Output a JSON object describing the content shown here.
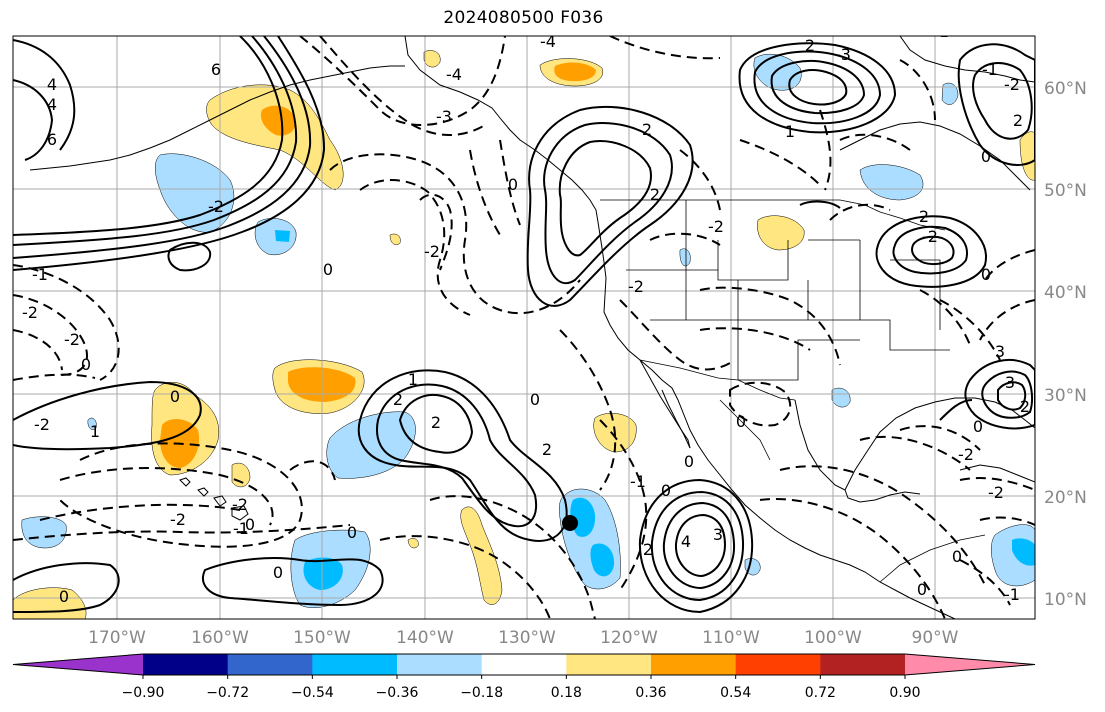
{
  "title": "2024080500 F036",
  "map": {
    "lon_range": [
      -180,
      -80
    ],
    "lat_range": [
      8,
      65
    ],
    "lat_labels": [
      "60°N",
      "50°N",
      "40°N",
      "30°N",
      "20°N",
      "10°N"
    ],
    "lon_labels": [
      "170°W",
      "160°W",
      "150°W",
      "140°W",
      "130°W",
      "120°W",
      "110°W",
      "100°W",
      "90°W"
    ],
    "contour_labels": [
      "-4",
      "6",
      "4",
      "6",
      "4",
      "-4",
      "-3",
      "-2",
      "2",
      "-3",
      "2",
      "1",
      "0",
      "-2",
      "0",
      "-1",
      "-2",
      "-2",
      "0",
      "1",
      "2",
      "2",
      "0",
      "2",
      "0",
      "0",
      "-2",
      "-1",
      "-2",
      "0",
      "1",
      "0",
      "-2",
      "0",
      "-2",
      "-2",
      "0",
      "-1",
      "0",
      "4",
      "3",
      "2",
      "0",
      "2",
      "0",
      "-2",
      "-1",
      "-2",
      "2",
      "3",
      "3",
      "2",
      "1",
      "0",
      "-2",
      "0",
      "-2",
      "0",
      "-1",
      "0",
      "2"
    ],
    "marker": {
      "lon": -125.8,
      "lat": 17.4,
      "color": "#000000"
    }
  },
  "colorbar": {
    "ticks": [
      "−0.90",
      "−0.72",
      "−0.54",
      "−0.36",
      "−0.18",
      "0.18",
      "0.36",
      "0.54",
      "0.72",
      "0.90"
    ],
    "colors": [
      "#9933cc",
      "#000088",
      "#3366cc",
      "#00bbff",
      "#aaddff",
      "#ffffff",
      "#ffe680",
      "#ffa000",
      "#ff4000",
      "#b22222",
      "#ff8aaa"
    ]
  },
  "colors": {
    "light_blue": "#aaddff",
    "blue": "#00bbff",
    "light_yellow": "#ffe680",
    "orange": "#ffa000",
    "grid": "#aaaaaa"
  }
}
